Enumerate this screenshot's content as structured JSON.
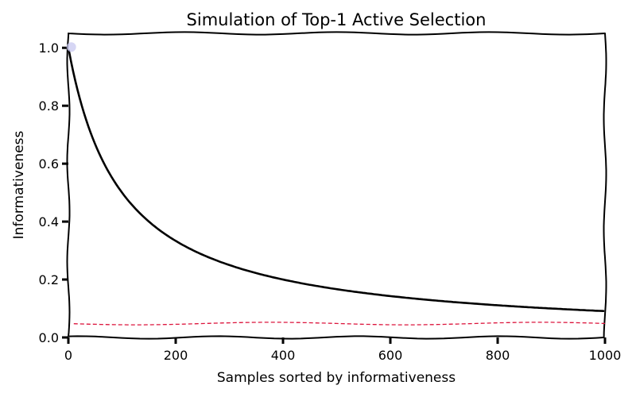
{
  "chart_data": {
    "type": "line",
    "title": "Simulation of Top-1 Active Selection",
    "xlabel": "Samples sorted by informativeness",
    "ylabel": "Informativeness",
    "xlim": [
      0,
      1000
    ],
    "ylim": [
      0,
      1.05
    ],
    "x_ticks": [
      "0",
      "200",
      "400",
      "600",
      "800",
      "1000"
    ],
    "y_ticks": [
      "0.0",
      "0.2",
      "0.4",
      "0.6",
      "0.8",
      "1.0"
    ],
    "grid": false,
    "legend": "none",
    "style": "xkcd",
    "series": [
      {
        "type": "line",
        "color": "#000000",
        "function": "1/(1+x/100)",
        "x": [
          1,
          10,
          25,
          50,
          75,
          100,
          150,
          200,
          250,
          300,
          400,
          500,
          600,
          700,
          800,
          900,
          1000
        ],
        "y": [
          0.99,
          0.91,
          0.8,
          0.67,
          0.57,
          0.5,
          0.4,
          0.333,
          0.286,
          0.25,
          0.2,
          0.167,
          0.143,
          0.125,
          0.111,
          0.1,
          0.091
        ]
      },
      {
        "type": "line",
        "style": "dashed",
        "color": "#dc143c",
        "x": [
          10,
          1000
        ],
        "y": [
          0.048,
          0.048
        ]
      },
      {
        "type": "scatter",
        "color": "#c8c8f0",
        "x": [
          1
        ],
        "y": [
          1.0
        ]
      }
    ]
  }
}
